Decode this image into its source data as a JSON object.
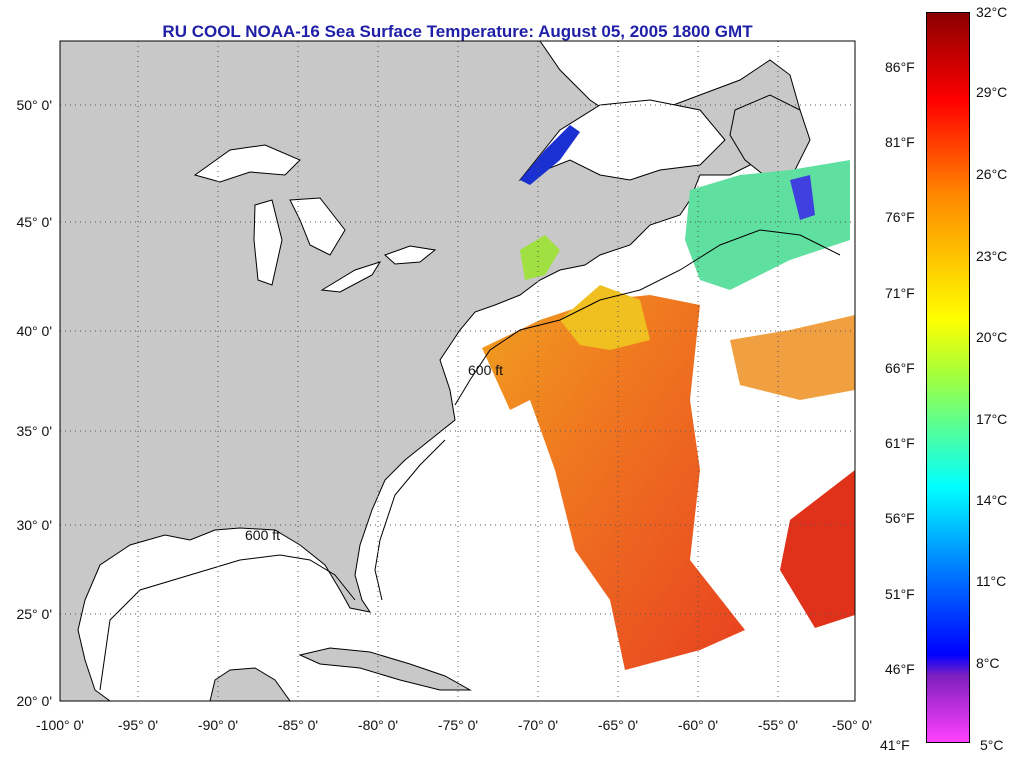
{
  "title": "RU COOL  NOAA-16  Sea Surface Temperature:  August 05, 2005 1800 GMT",
  "map": {
    "lon_labels": [
      "-100° 0'",
      "-95° 0'",
      "-90° 0'",
      "-85° 0'",
      "-80° 0'",
      "-75° 0'",
      "-70° 0'",
      "-65° 0'",
      "-60° 0'",
      "-55° 0'",
      "-50° 0'"
    ],
    "lat_labels": [
      "50° 0'",
      "45° 0'",
      "40° 0'",
      "35° 0'",
      "30° 0'",
      "25° 0'",
      "20° 0'"
    ],
    "isobath_label": "600 ft",
    "land_color": "#c8c8c8",
    "ocean_color": "#ffffff"
  },
  "colorbar": {
    "celsius_labels": [
      "32°C",
      "29°C",
      "26°C",
      "23°C",
      "20°C",
      "17°C",
      "14°C",
      "11°C",
      "8°C",
      "5°C"
    ],
    "fahrenheit_labels": [
      "86°F",
      "81°F",
      "76°F",
      "71°F",
      "66°F",
      "61°F",
      "56°F",
      "51°F",
      "46°F",
      "41°F"
    ],
    "colors": [
      "#8b0000",
      "#ff0000",
      "#ff8800",
      "#ffff00",
      "#00ffff",
      "#0000ff",
      "#ff00ff"
    ]
  }
}
